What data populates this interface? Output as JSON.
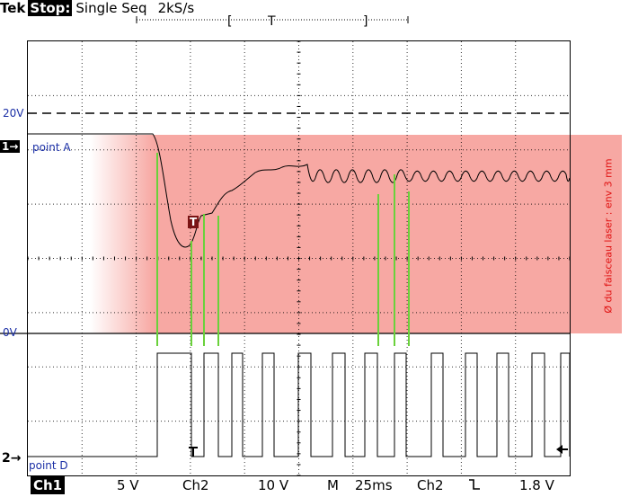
{
  "header": {
    "brand": "Tek",
    "run_state": "Stop:",
    "acquisition_mode": "Single Seq",
    "sample_rate": "2kS/s",
    "trigger_window_left": "[",
    "trigger_window_marker": "T",
    "trigger_window_right": "]"
  },
  "levels": {
    "upper_level": "20V",
    "zero_level": "0V"
  },
  "channels": {
    "ch1_marker": "1→",
    "ch2_marker": "2→",
    "ch1_point": "point A",
    "ch2_point": "point D",
    "trigger_marker": "T"
  },
  "annotation": {
    "laser_beam": "Ø du faisceau laser : env 3 mm",
    "band_color": "#f7a8a3",
    "tick_color": "#6ad13b"
  },
  "status_bar": {
    "ch1_label": "Ch1",
    "ch1_scale": "5 V",
    "ch2_label": "Ch2",
    "ch2_scale": "10 V",
    "timebase_label": "M",
    "timebase_value": "25ms",
    "trigger_source": "Ch2",
    "trigger_slope_icon": "falling-edge-icon",
    "trigger_level": "1.8 V"
  }
}
